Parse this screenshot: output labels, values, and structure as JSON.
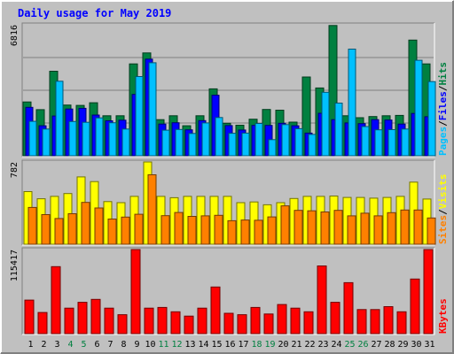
{
  "colors": {
    "background": "#c0c0c0",
    "title": "#0000ff",
    "axis_text": "#000000",
    "grid": "#808080",
    "hits": "#008040",
    "files": "#0000ff",
    "pages": "#00c0ff",
    "visits": "#ffff00",
    "sites": "#ff8000",
    "kbytes": "#ff0000",
    "weekend": "#008040"
  },
  "chart_data": {
    "type": "bar",
    "title": "Daily usage for May 2019",
    "categories": [
      "1",
      "2",
      "3",
      "4",
      "5",
      "6",
      "7",
      "8",
      "9",
      "10",
      "11",
      "12",
      "13",
      "14",
      "15",
      "16",
      "17",
      "18",
      "19",
      "20",
      "21",
      "22",
      "23",
      "24",
      "25",
      "26",
      "27",
      "28",
      "29",
      "30",
      "31"
    ],
    "weekend_days": [
      "4",
      "5",
      "11",
      "12",
      "18",
      "19",
      "25",
      "26"
    ],
    "panels": [
      {
        "name": "hits-files-pages",
        "ymax": 6816,
        "ymax_label": "6816",
        "legend": [
          {
            "label": "Pages",
            "color": "#00c0ff"
          },
          {
            "label": "/",
            "color": "#000000"
          },
          {
            "label": "Files",
            "color": "#0000ff"
          },
          {
            "label": "/",
            "color": "#000000"
          },
          {
            "label": "Hits",
            "color": "#008040"
          }
        ],
        "series": [
          {
            "name": "Hits",
            "color": "#008040",
            "values": [
              2800,
              2400,
              4400,
              2640,
              2620,
              2760,
              2080,
              2080,
              4780,
              5350,
              1880,
              2080,
              1560,
              2080,
              3480,
              1690,
              1590,
              1900,
              2410,
              2370,
              1750,
              4100,
              3530,
              6780,
              2080,
              1980,
              2040,
              2080,
              2100,
              6020,
              4780
            ]
          },
          {
            "name": "Files",
            "color": "#0000ff",
            "values": [
              2520,
              1560,
              2070,
              2430,
              2470,
              2120,
              1820,
              1850,
              3190,
              5030,
              1650,
              1720,
              1350,
              1830,
              3150,
              1570,
              1340,
              1580,
              1580,
              1690,
              1560,
              1180,
              2210,
              1880,
              1710,
              1670,
              1880,
              1860,
              1650,
              2200,
              2030
            ]
          },
          {
            "name": "Pages",
            "color": "#00c0ff",
            "values": [
              1790,
              1390,
              3880,
              1780,
              1740,
              1970,
              1720,
              1390,
              4120,
              4840,
              1330,
              1370,
              1160,
              1710,
              1990,
              1170,
              1180,
              1680,
              840,
              1620,
              1410,
              1110,
              3300,
              2740,
              5550,
              1520,
              1350,
              1360,
              1390,
              4970,
              3860
            ]
          }
        ]
      },
      {
        "name": "visits-sites",
        "ymax": 782,
        "ymax_label": "782",
        "legend": [
          {
            "label": "Sites",
            "color": "#ff8000"
          },
          {
            "label": "/",
            "color": "#000000"
          },
          {
            "label": "Visits",
            "color": "#ffff00"
          }
        ],
        "series": [
          {
            "name": "Visits",
            "color": "#ffff00",
            "values": [
              500,
              432,
              455,
              482,
              640,
              595,
              405,
              395,
              455,
              782,
              455,
              442,
              455,
              455,
              455,
              455,
              395,
              402,
              375,
              395,
              435,
              455,
              455,
              458,
              445,
              445,
              438,
              445,
              455,
              590,
              430
            ]
          },
          {
            "name": "Sites",
            "color": "#ff8000",
            "values": [
              350,
              282,
              245,
              290,
              398,
              345,
              240,
              258,
              285,
              660,
              272,
              302,
              265,
              270,
              275,
              224,
              230,
              228,
              260,
              365,
              322,
              318,
              307,
              322,
              270,
              295,
              270,
              300,
              325,
              325,
              250
            ]
          }
        ]
      },
      {
        "name": "kbytes",
        "ymax": 115417,
        "ymax_label": "115417",
        "legend": [
          {
            "label": "KBytes",
            "color": "#ff0000"
          }
        ],
        "series": [
          {
            "name": "KBytes",
            "color": "#ff0000",
            "values": [
              46000,
              29000,
              92000,
              35000,
              43000,
              47000,
              35000,
              26000,
              115417,
              35000,
              36000,
              30000,
              24000,
              35000,
              64000,
              28000,
              26000,
              36000,
              27000,
              40000,
              35000,
              30000,
              93000,
              43000,
              70000,
              33000,
              33000,
              37000,
              30000,
              75000,
              115417
            ]
          }
        ]
      }
    ]
  }
}
